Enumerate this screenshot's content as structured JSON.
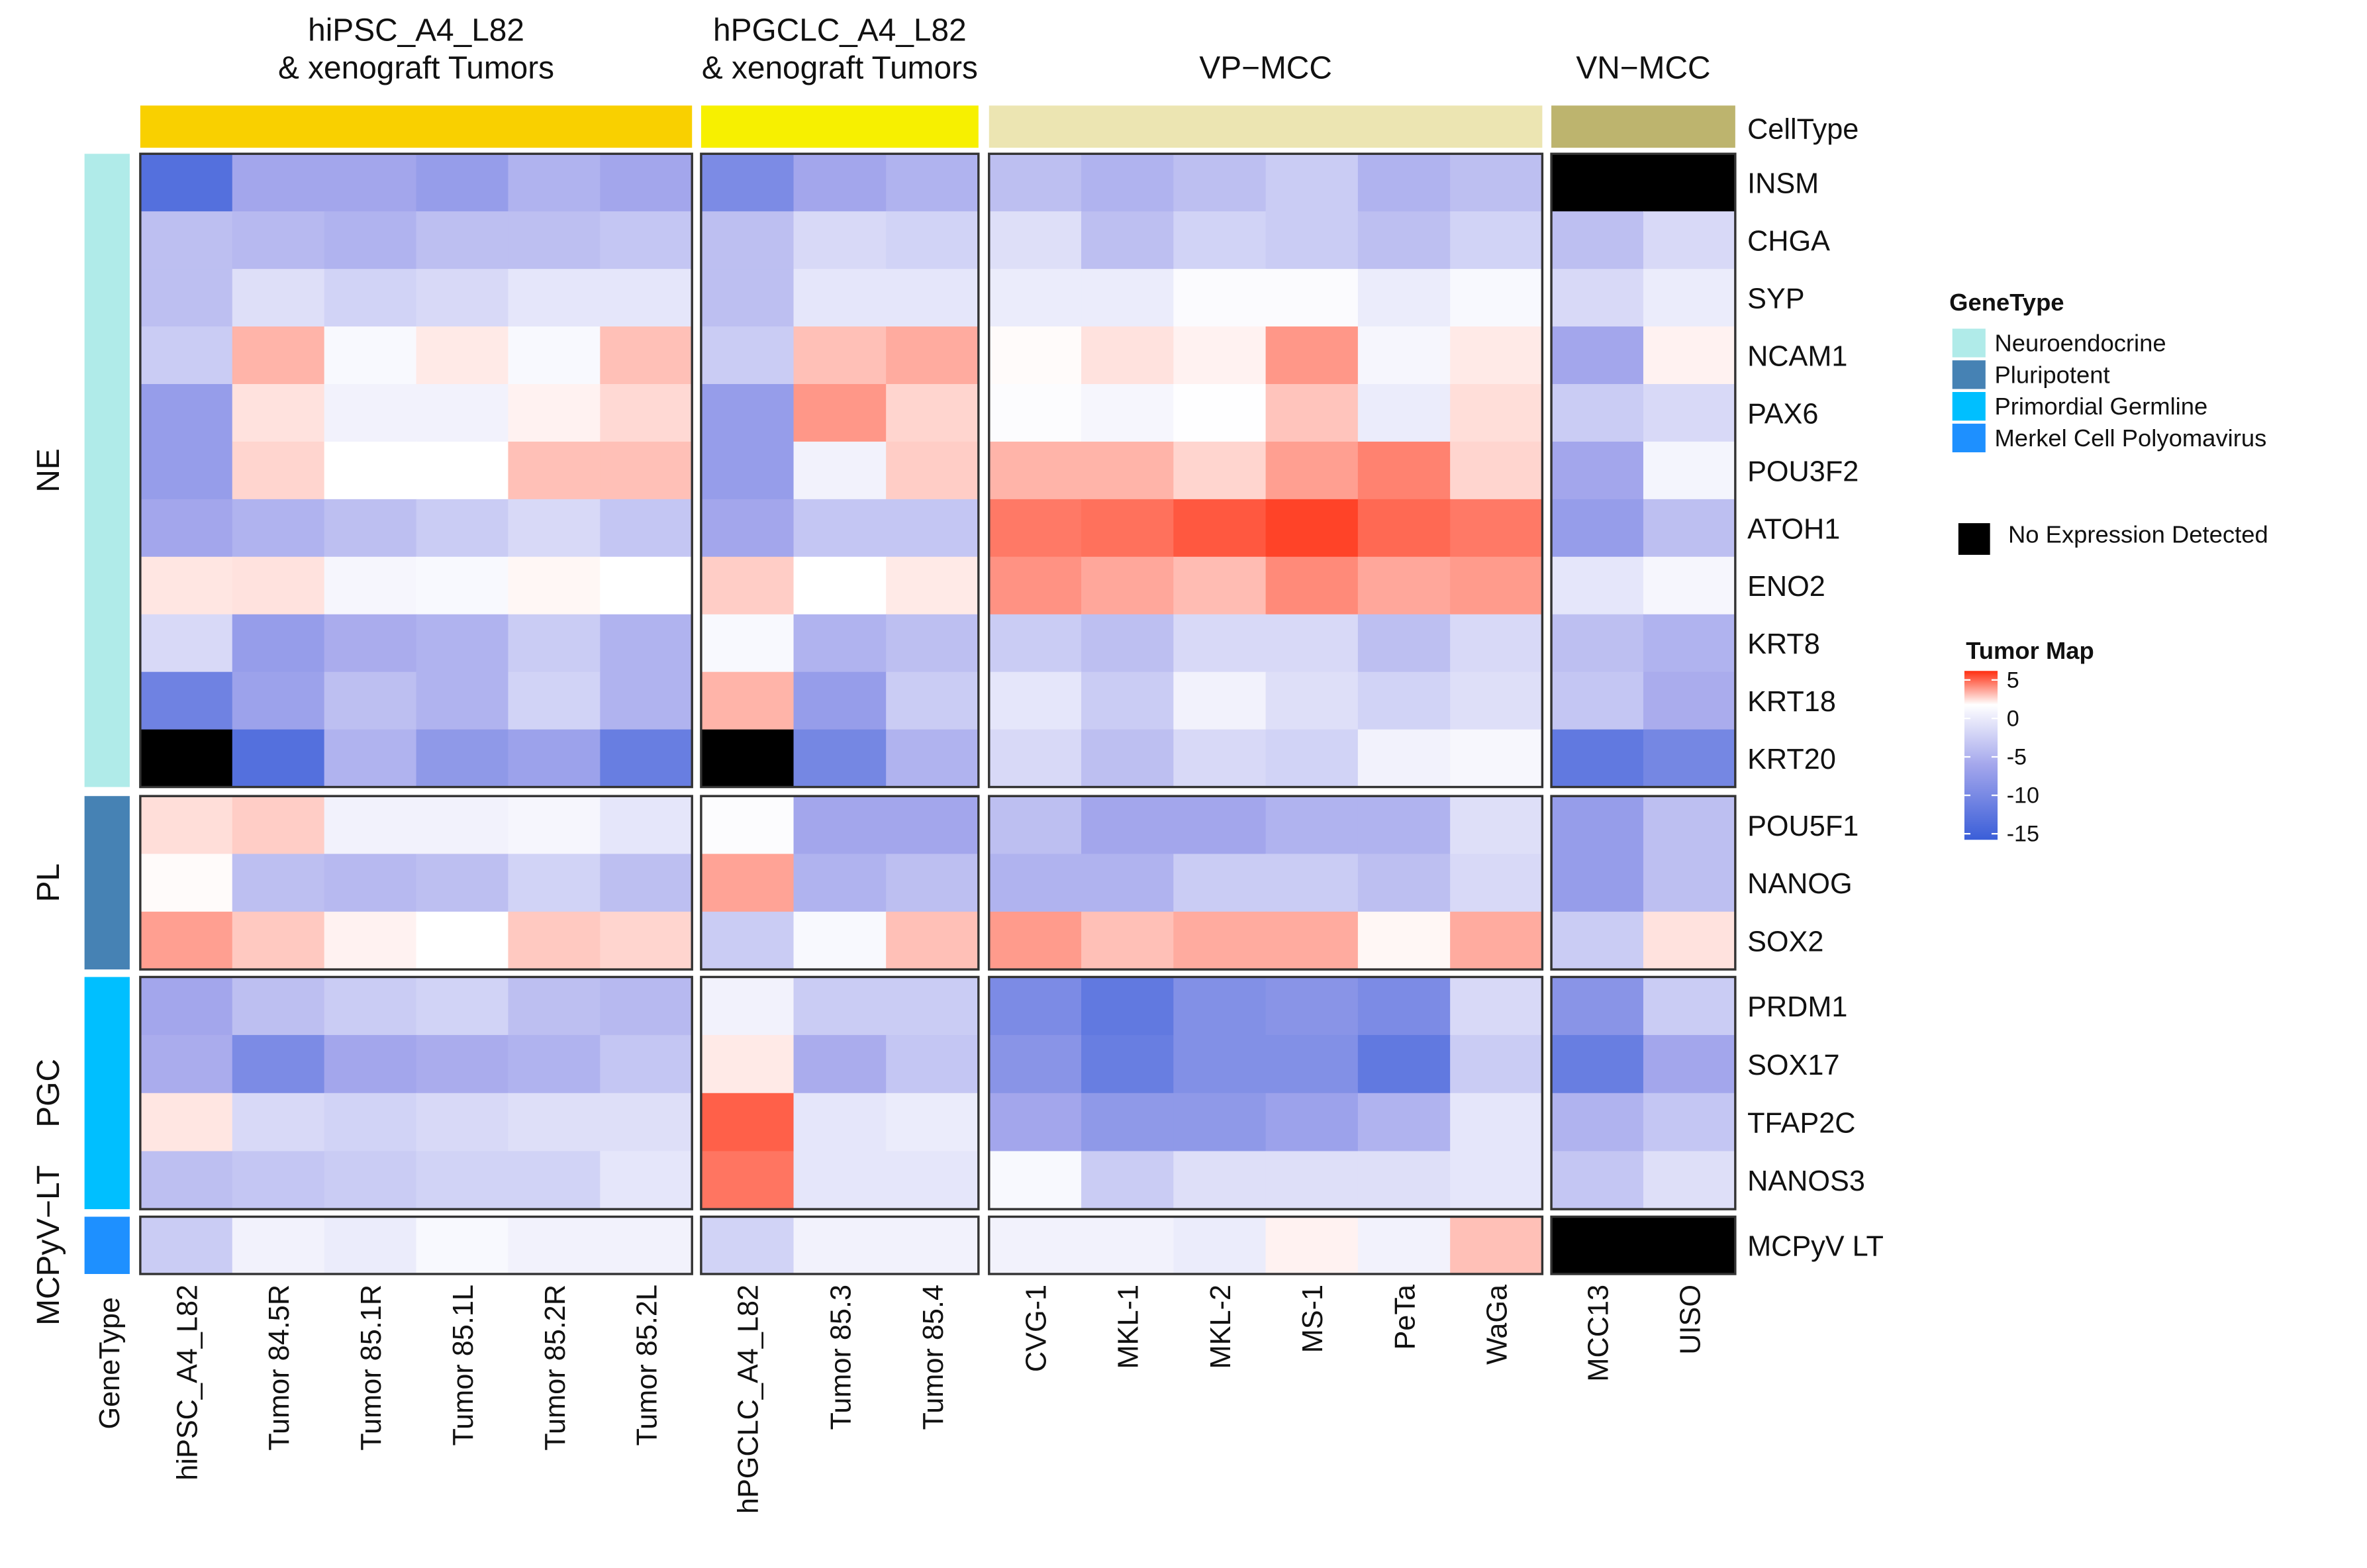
{
  "chart_data": {
    "type": "heatmap",
    "legend_title": "Tumor Map",
    "scale": {
      "min": -15,
      "max": 5,
      "ticks": [
        "5",
        "0",
        "-5",
        "-10",
        "-15"
      ],
      "colors": {
        "low": "#3a5ed8",
        "mid_low": "#a3a6ec",
        "zero": "#ffffff",
        "high": "#ff2e10"
      }
    },
    "cell_type_label": "CellType",
    "gene_type_label": "GeneType",
    "column_groups": [
      {
        "title_lines": [
          "hiPSC_A4_L82",
          "& xenograft Tumors"
        ],
        "color": "#f9d000",
        "samples": [
          "hiPSC_A4_L82",
          "Tumor 84.5R",
          "Tumor 85.1R",
          "Tumor 85.1L",
          "Tumor 85.2R",
          "Tumor 85.2L"
        ]
      },
      {
        "title_lines": [
          "hPGCLC_A4_L82",
          "& xenograft Tumors"
        ],
        "color": "#f7f000",
        "samples": [
          "hPGCLC_A4_L82",
          "Tumor 85.3",
          "Tumor 85.4"
        ]
      },
      {
        "title_lines": [
          "VP−MCC"
        ],
        "color": "#ece5b2",
        "samples": [
          "CVG-1",
          "MKL-1",
          "MKL-2",
          "MS-1",
          "PeTa",
          "WaGa"
        ]
      },
      {
        "title_lines": [
          "VN−MCC"
        ],
        "color": "#bdb46e",
        "samples": [
          "MCC13",
          "UISO"
        ]
      }
    ],
    "row_groups": [
      {
        "label": "NE",
        "gene_type": "Neuroendocrine",
        "color": "#b0ebe9",
        "genes": [
          "INSM",
          "CHGA",
          "SYP",
          "NCAM1",
          "PAX6",
          "POU3F2",
          "ATOH1",
          "ENO2",
          "KRT8",
          "KRT18",
          "KRT20"
        ]
      },
      {
        "label": "PL",
        "gene_type": "Pluripotent",
        "color": "#4682b4",
        "genes": [
          "POU5F1",
          "NANOG",
          "SOX2"
        ]
      },
      {
        "label": "PGC",
        "gene_type": "Primordial Germline",
        "color": "#00bfff",
        "genes": [
          "PRDM1",
          "SOX17",
          "TFAP2C",
          "NANOS3"
        ]
      },
      {
        "label": "MCPyV−LT",
        "gene_type": "Merkel Cell Polyomavirus",
        "color": "#1e90ff",
        "genes": [
          "MCPyV LT"
        ]
      }
    ],
    "values": {
      "INSM": [
        -13,
        -7,
        -7,
        -8,
        -6,
        -7,
        -10,
        -7,
        -6,
        -5,
        -6,
        -5,
        -4,
        -6,
        -5,
        null,
        null
      ],
      "CHGA": [
        -5,
        -5.5,
        -6,
        -5,
        -5,
        -4.5,
        -5,
        -3,
        -3.5,
        -2.5,
        -5,
        -3.5,
        -4,
        -5,
        -3.5,
        -5,
        -3
      ],
      "SYP": [
        -5,
        -2.5,
        -3.5,
        -3,
        -2,
        -2,
        -5,
        -2,
        -2,
        -1.5,
        -1.5,
        -0.3,
        -0.3,
        -1.5,
        -0.5,
        -3,
        -1.5
      ],
      "NCAM1": [
        -4,
        1.8,
        -0.5,
        0.5,
        -0.5,
        1.5,
        -4,
        1.5,
        2,
        0.1,
        0.7,
        0.3,
        2.5,
        -0.7,
        0.5,
        -7,
        0.3
      ],
      "PAX6": [
        -8,
        0.7,
        -1,
        -1,
        0.3,
        0.9,
        -8,
        2.5,
        1,
        -0.2,
        -0.7,
        -0.1,
        1.4,
        -1.5,
        0.8,
        -4,
        -3
      ],
      "POU3F2": [
        -8,
        1,
        0,
        0,
        1.5,
        1.5,
        -8,
        -1,
        1.2,
        1.8,
        1.8,
        1,
        2.3,
        3,
        1,
        -7,
        -0.8
      ],
      "ATOH1": [
        -7,
        -6,
        -5,
        -4,
        -3,
        -4.5,
        -7,
        -4.5,
        -4.5,
        3.2,
        3.4,
        4,
        4.5,
        3.6,
        3.2,
        -8,
        -5
      ],
      "ENO2": [
        0.6,
        0.7,
        -0.7,
        -0.5,
        0.2,
        0,
        1.2,
        0,
        0.5,
        2.6,
        2.1,
        1.6,
        2.8,
        2.1,
        2.4,
        -2,
        -0.7
      ],
      "KRT8": [
        -3,
        -8,
        -6.5,
        -6,
        -4,
        -6,
        -0.5,
        -6,
        -5,
        -4,
        -5,
        -3,
        -3,
        -5,
        -3,
        -5,
        -6
      ],
      "KRT18": [
        -11,
        -7.5,
        -5,
        -6,
        -3.5,
        -6,
        1.8,
        -8,
        -4,
        -2,
        -4,
        -1,
        -2.5,
        -3.5,
        -2.5,
        -4.5,
        -6.5
      ],
      "KRT20": [
        null,
        -13,
        -6,
        -8.5,
        -7.5,
        -11.5,
        null,
        -10.5,
        -6,
        -3,
        -5,
        -3,
        -3.5,
        -1,
        -0.6,
        -12,
        -10.5
      ],
      "POU5F1": [
        0.8,
        1.2,
        -1,
        -1,
        -0.7,
        -2,
        -0.2,
        -7,
        -7,
        -5,
        -7,
        -7,
        -6,
        -6,
        -2.5,
        -8,
        -5
      ],
      "NANOG": [
        0.1,
        -5,
        -5.5,
        -5,
        -3.5,
        -5,
        2.2,
        -6,
        -5,
        -6,
        -6,
        -4,
        -4,
        -5,
        -3,
        -8,
        -5
      ],
      "SOX2": [
        2.3,
        1.3,
        0.3,
        0,
        1.3,
        1,
        -4,
        -0.5,
        1.5,
        2.4,
        1.5,
        2,
        2,
        0.2,
        2,
        -4,
        0.7
      ],
      "PRDM1": [
        -7,
        -5,
        -4,
        -3.5,
        -5,
        -5.5,
        -1,
        -4,
        -4,
        -10,
        -12,
        -9.5,
        -9,
        -10,
        -3,
        -9,
        -4
      ],
      "SOX17": [
        -6.5,
        -10,
        -7,
        -6.5,
        -6,
        -4.5,
        0.5,
        -6.5,
        -4.5,
        -9,
        -11.5,
        -9.5,
        -9.5,
        -12,
        -4,
        -11.5,
        -7
      ],
      "TFAP2C": [
        0.6,
        -3,
        -3.5,
        -3,
        -2.5,
        -2.5,
        3.8,
        -2,
        -1.5,
        -7,
        -8.5,
        -8.5,
        -7.5,
        -6,
        -2,
        -6,
        -4.5
      ],
      "NANOS3": [
        -5,
        -4.5,
        -4,
        -3.5,
        -3.5,
        -2,
        3.3,
        -2,
        -2,
        -0.5,
        -4,
        -2.5,
        -2.5,
        -2.5,
        -2,
        -4.5,
        -2.5
      ],
      "MCPyV LT": [
        -4,
        -1,
        -1.5,
        -0.5,
        -1,
        -1,
        -3.5,
        -1,
        -1,
        -1,
        -1,
        -1.5,
        0.3,
        -1,
        1.5,
        null,
        null
      ]
    },
    "na_color": "#000000",
    "na_label": "No Expression Detected",
    "legend": {
      "gene_type_title": "GeneType",
      "gene_type_items": [
        {
          "label": "Neuroendocrine",
          "color": "#b0ebe9"
        },
        {
          "label": "Pluripotent",
          "color": "#4682b4"
        },
        {
          "label": "Primordial Germline",
          "color": "#00bfff"
        },
        {
          "label": "Merkel Cell Polyomavirus",
          "color": "#1e90ff"
        }
      ],
      "placement": "right"
    }
  }
}
